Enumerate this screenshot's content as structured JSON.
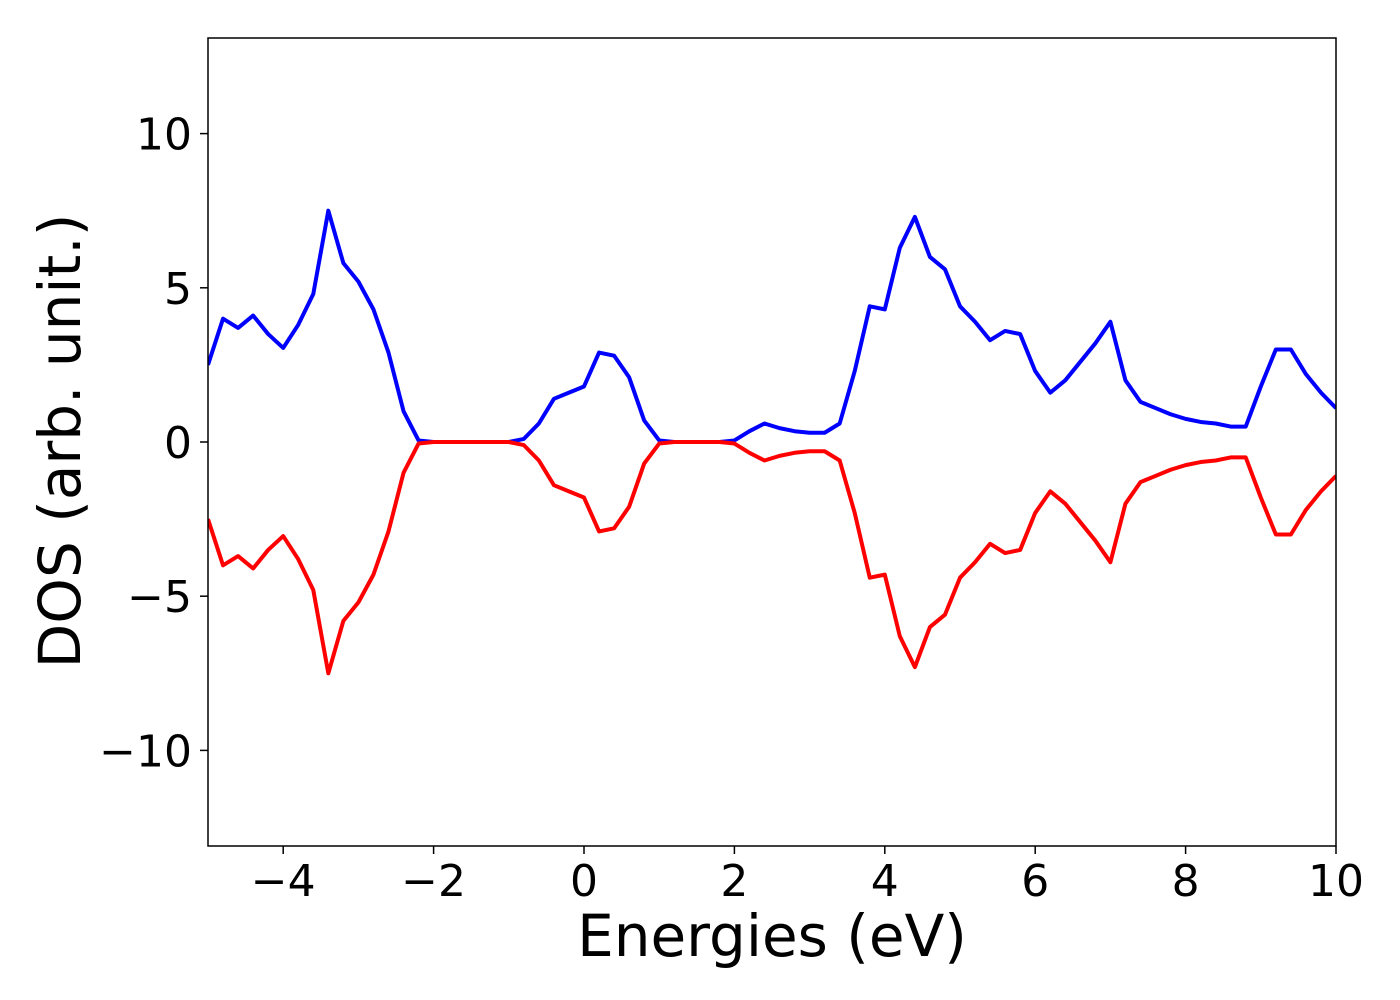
{
  "chart_data": {
    "type": "line",
    "xlabel": "Energies (eV)",
    "ylabel": "DOS (arb. unit.)",
    "x": [
      -5,
      -4.8,
      -4.6,
      -4.4,
      -4.2,
      -4,
      -3.8,
      -3.6,
      -3.4,
      -3.2,
      -3,
      -2.8,
      -2.6,
      -2.4,
      -2.2,
      -2,
      -1.8,
      -1.6,
      -1.4,
      -1.2,
      -1,
      -0.8,
      -0.6,
      -0.4,
      -0.2,
      0,
      0.2,
      0.4,
      0.6,
      0.8,
      1,
      1.2,
      1.4,
      1.6,
      1.8,
      2,
      2.2,
      2.4,
      2.6,
      2.8,
      3,
      3.2,
      3.4,
      3.6,
      3.8,
      4,
      4.2,
      4.4,
      4.6,
      4.8,
      5,
      5.2,
      5.4,
      5.6,
      5.8,
      6,
      6.2,
      6.4,
      6.6,
      6.8,
      7,
      7.2,
      7.4,
      7.6,
      7.8,
      8,
      8.2,
      8.4,
      8.6,
      8.8,
      9,
      9.2,
      9.4,
      9.6,
      9.8,
      10
    ],
    "series": [
      {
        "color": "#0000ff",
        "values": [
          2.5,
          4.0,
          3.7,
          4.1,
          3.5,
          3.05,
          3.8,
          4.8,
          7.5,
          5.8,
          5.2,
          4.3,
          2.9,
          1.0,
          0.05,
          0,
          0,
          0,
          0,
          0,
          0,
          0.1,
          0.6,
          1.4,
          1.6,
          1.8,
          2.9,
          2.8,
          2.1,
          0.7,
          0.05,
          0,
          0,
          0,
          0,
          0.05,
          0.35,
          0.6,
          0.45,
          0.35,
          0.3,
          0.3,
          0.6,
          2.3,
          4.4,
          4.3,
          6.3,
          7.3,
          6.0,
          5.6,
          4.4,
          3.9,
          3.3,
          3.6,
          3.5,
          2.3,
          1.6,
          2.0,
          2.6,
          3.2,
          3.9,
          2.0,
          1.3,
          1.1,
          0.9,
          0.75,
          0.65,
          0.6,
          0.5,
          0.5,
          1.8,
          3.0,
          3.0,
          2.2,
          1.6,
          1.1
        ]
      },
      {
        "color": "#ff0000",
        "values": [
          -2.5,
          -4.0,
          -3.7,
          -4.1,
          -3.5,
          -3.05,
          -3.8,
          -4.8,
          -7.5,
          -5.8,
          -5.2,
          -4.3,
          -2.9,
          -1.0,
          -0.05,
          0,
          0,
          0,
          0,
          0,
          0,
          -0.1,
          -0.6,
          -1.4,
          -1.6,
          -1.8,
          -2.9,
          -2.8,
          -2.1,
          -0.7,
          -0.05,
          0,
          0,
          0,
          0,
          -0.05,
          -0.35,
          -0.6,
          -0.45,
          -0.35,
          -0.3,
          -0.3,
          -0.6,
          -2.3,
          -4.4,
          -4.3,
          -6.3,
          -7.3,
          -6.0,
          -5.6,
          -4.4,
          -3.9,
          -3.3,
          -3.6,
          -3.5,
          -2.3,
          -1.6,
          -2.0,
          -2.6,
          -3.2,
          -3.9,
          -2.0,
          -1.3,
          -1.1,
          -0.9,
          -0.75,
          -0.65,
          -0.6,
          -0.5,
          -0.5,
          -1.8,
          -3.0,
          -3.0,
          -2.2,
          -1.6,
          -1.1
        ]
      }
    ],
    "xlim": [
      -5,
      10
    ],
    "ylim": [
      -13.1,
      13.1
    ],
    "xticks": [
      {
        "value": -4,
        "label": "−4"
      },
      {
        "value": -2,
        "label": "−2"
      },
      0,
      2,
      4,
      6,
      8,
      10
    ],
    "yticks": [
      {
        "value": -10,
        "label": "−10"
      },
      {
        "value": -5,
        "label": "−5"
      },
      0,
      5,
      10
    ],
    "grid": false
  }
}
